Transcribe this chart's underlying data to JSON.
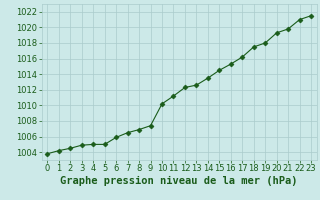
{
  "x": [
    0,
    1,
    2,
    3,
    4,
    5,
    6,
    7,
    8,
    9,
    10,
    11,
    12,
    13,
    14,
    15,
    16,
    17,
    18,
    19,
    20,
    21,
    22,
    23
  ],
  "y": [
    1003.8,
    1004.2,
    1004.5,
    1004.9,
    1005.0,
    1005.0,
    1005.9,
    1006.5,
    1006.9,
    1007.4,
    1010.2,
    1011.2,
    1012.3,
    1012.6,
    1013.5,
    1014.5,
    1015.3,
    1016.2,
    1017.5,
    1018.0,
    1019.3,
    1019.8,
    1021.0,
    1021.5
  ],
  "line_color": "#1a5c1a",
  "marker": "D",
  "marker_size": 2.5,
  "bg_color": "#cce9e8",
  "grid_color": "#aacccc",
  "xlabel": "Graphe pression niveau de la mer (hPa)",
  "xlabel_fontsize": 7.5,
  "xlabel_color": "#1a5c1a",
  "tick_label_color": "#1a5c1a",
  "tick_fontsize": 6,
  "ylim": [
    1003,
    1023
  ],
  "xlim": [
    -0.5,
    23.5
  ],
  "yticks": [
    1004,
    1006,
    1008,
    1010,
    1012,
    1014,
    1016,
    1018,
    1020,
    1022
  ],
  "xticks": [
    0,
    1,
    2,
    3,
    4,
    5,
    6,
    7,
    8,
    9,
    10,
    11,
    12,
    13,
    14,
    15,
    16,
    17,
    18,
    19,
    20,
    21,
    22,
    23
  ]
}
